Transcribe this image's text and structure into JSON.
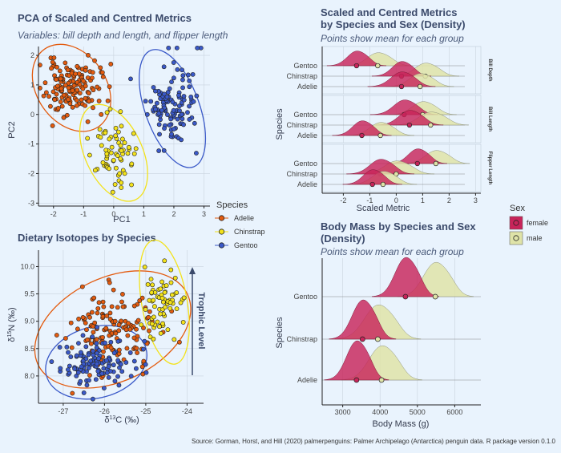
{
  "colors": {
    "background": "#e9f3fd",
    "adelie": "#e35b0f",
    "chinstrap": "#f3e21b",
    "gentoo": "#3a59c8",
    "female": "#c8245a",
    "male": "#dfe3a8",
    "title": "#3b4a6b"
  },
  "source": "Source: Gorman, Horst, and Hill (2020) palmerpenguins: Palmer Archipelago (Antarctica) penguin data. R package version 0.1.0",
  "species_legend": {
    "title": "Species",
    "items": [
      "Adelie",
      "Chinstrap",
      "Gentoo"
    ]
  },
  "sex_legend": {
    "title": "Sex",
    "items": [
      "female",
      "male"
    ]
  },
  "chart_data": [
    {
      "type": "scatter",
      "title": "PCA of Scaled and Centred Metrics",
      "subtitle": "Variables: bill depth and length, and flipper length",
      "xlabel": "PC1",
      "ylabel": "PC2",
      "xlim": [
        -2.5,
        3.2
      ],
      "ylim": [
        -3.1,
        2.3
      ],
      "xticks": [
        -2,
        -1,
        0,
        1,
        2,
        3
      ],
      "yticks": [
        -3,
        -2,
        -1,
        0,
        1,
        2
      ],
      "grid": true,
      "clusters": [
        {
          "series": "Adelie",
          "center": [
            -1.4,
            0.9
          ],
          "spread": [
            0.45,
            0.45
          ],
          "count": 146,
          "ellipse": {
            "rx": 1.15,
            "ry": 1.6,
            "angle": -35
          }
        },
        {
          "series": "Chinstrap",
          "center": [
            0.0,
            -1.3
          ],
          "spread": [
            0.35,
            0.65
          ],
          "count": 68,
          "ellipse": {
            "rx": 0.95,
            "ry": 1.75,
            "angle": -25
          }
        },
        {
          "series": "Gentoo",
          "center": [
            1.95,
            0.2
          ],
          "spread": [
            0.4,
            0.7
          ],
          "count": 119,
          "ellipse": {
            "rx": 0.9,
            "ry": 2.1,
            "angle": -20
          }
        }
      ]
    },
    {
      "type": "scatter",
      "title": "Dietary Isotopes by Species",
      "xlabel": "δ13C (‰)",
      "ylabel": "δ15N (‰)",
      "xlim": [
        -27.6,
        -23.6
      ],
      "ylim": [
        7.5,
        10.3
      ],
      "xticks": [
        -27,
        -26,
        -25,
        -24
      ],
      "yticks": [
        8.0,
        8.5,
        9.0,
        9.5,
        10.0
      ],
      "annotation": "Trophic Level",
      "grid": true,
      "clusters": [
        {
          "series": "Adelie",
          "center": [
            -25.8,
            8.85
          ],
          "spread": [
            0.55,
            0.35
          ],
          "count": 146,
          "ellipse": {
            "rx": 2.0,
            "ry": 0.95,
            "angle": -25
          }
        },
        {
          "series": "Chinstrap",
          "center": [
            -24.55,
            9.35
          ],
          "spread": [
            0.25,
            0.3
          ],
          "count": 68,
          "ellipse": {
            "rx": 0.55,
            "ry": 1.15,
            "angle": -10
          }
        },
        {
          "series": "Gentoo",
          "center": [
            -26.2,
            8.25
          ],
          "spread": [
            0.45,
            0.22
          ],
          "count": 119,
          "ellipse": {
            "rx": 1.25,
            "ry": 0.65,
            "angle": -15
          }
        }
      ]
    },
    {
      "type": "area",
      "title": "Scaled and Centred Metrics",
      "title2": "by Species and Sex (Density)",
      "subtitle": "Points show mean for each group",
      "xlabel": "Scaled Metric",
      "ylabel": "Species",
      "xlim": [
        -2.8,
        3.2
      ],
      "xticks": [
        -2,
        -1,
        0,
        1,
        2,
        3
      ],
      "facets": [
        {
          "name": "Bill Depth",
          "rows": [
            {
              "species": "Gentoo",
              "female_mean": -1.5,
              "male_mean": -0.7,
              "female_sd": 0.35,
              "male_sd": 0.4
            },
            {
              "species": "Chinstrap",
              "female_mean": 0.2,
              "male_mean": 1.1,
              "female_sd": 0.35,
              "male_sd": 0.4
            },
            {
              "species": "Adelie",
              "female_mean": 0.2,
              "male_mean": 0.9,
              "female_sd": 0.4,
              "male_sd": 0.4
            }
          ]
        },
        {
          "name": "Bill Length",
          "rows": [
            {
              "species": "Gentoo",
              "female_mean": 0.3,
              "male_mean": 1.0,
              "female_sd": 0.4,
              "male_sd": 0.4
            },
            {
              "species": "Chinstrap",
              "female_mean": 0.5,
              "male_mean": 1.3,
              "female_sd": 0.4,
              "male_sd": 0.45
            },
            {
              "species": "Adelie",
              "female_mean": -1.3,
              "male_mean": -0.6,
              "female_sd": 0.35,
              "male_sd": 0.4
            }
          ]
        },
        {
          "name": "Flipper Length",
          "rows": [
            {
              "species": "Gentoo",
              "female_mean": 0.8,
              "male_mean": 1.5,
              "female_sd": 0.35,
              "male_sd": 0.4
            },
            {
              "species": "Chinstrap",
              "female_mean": -0.6,
              "male_mean": 0.0,
              "female_sd": 0.4,
              "male_sd": 0.45
            },
            {
              "species": "Adelie",
              "female_mean": -0.9,
              "male_mean": -0.5,
              "female_sd": 0.35,
              "male_sd": 0.4
            }
          ]
        }
      ]
    },
    {
      "type": "area",
      "title": "Body Mass by Species and Sex",
      "title2": "(Density)",
      "subtitle": "Points show mean for each group",
      "xlabel": "Body Mass (g)",
      "ylabel": "Species",
      "xlim": [
        2450,
        6700
      ],
      "xticks": [
        3000,
        4000,
        5000,
        6000
      ],
      "rows": [
        {
          "species": "Gentoo",
          "female_mean": 4680,
          "male_mean": 5480,
          "female_sd": 280,
          "male_sd": 320
        },
        {
          "species": "Chinstrap",
          "female_mean": 3530,
          "male_mean": 3940,
          "female_sd": 280,
          "male_sd": 360
        },
        {
          "species": "Adelie",
          "female_mean": 3370,
          "male_mean": 4040,
          "female_sd": 270,
          "male_sd": 340
        }
      ]
    }
  ]
}
